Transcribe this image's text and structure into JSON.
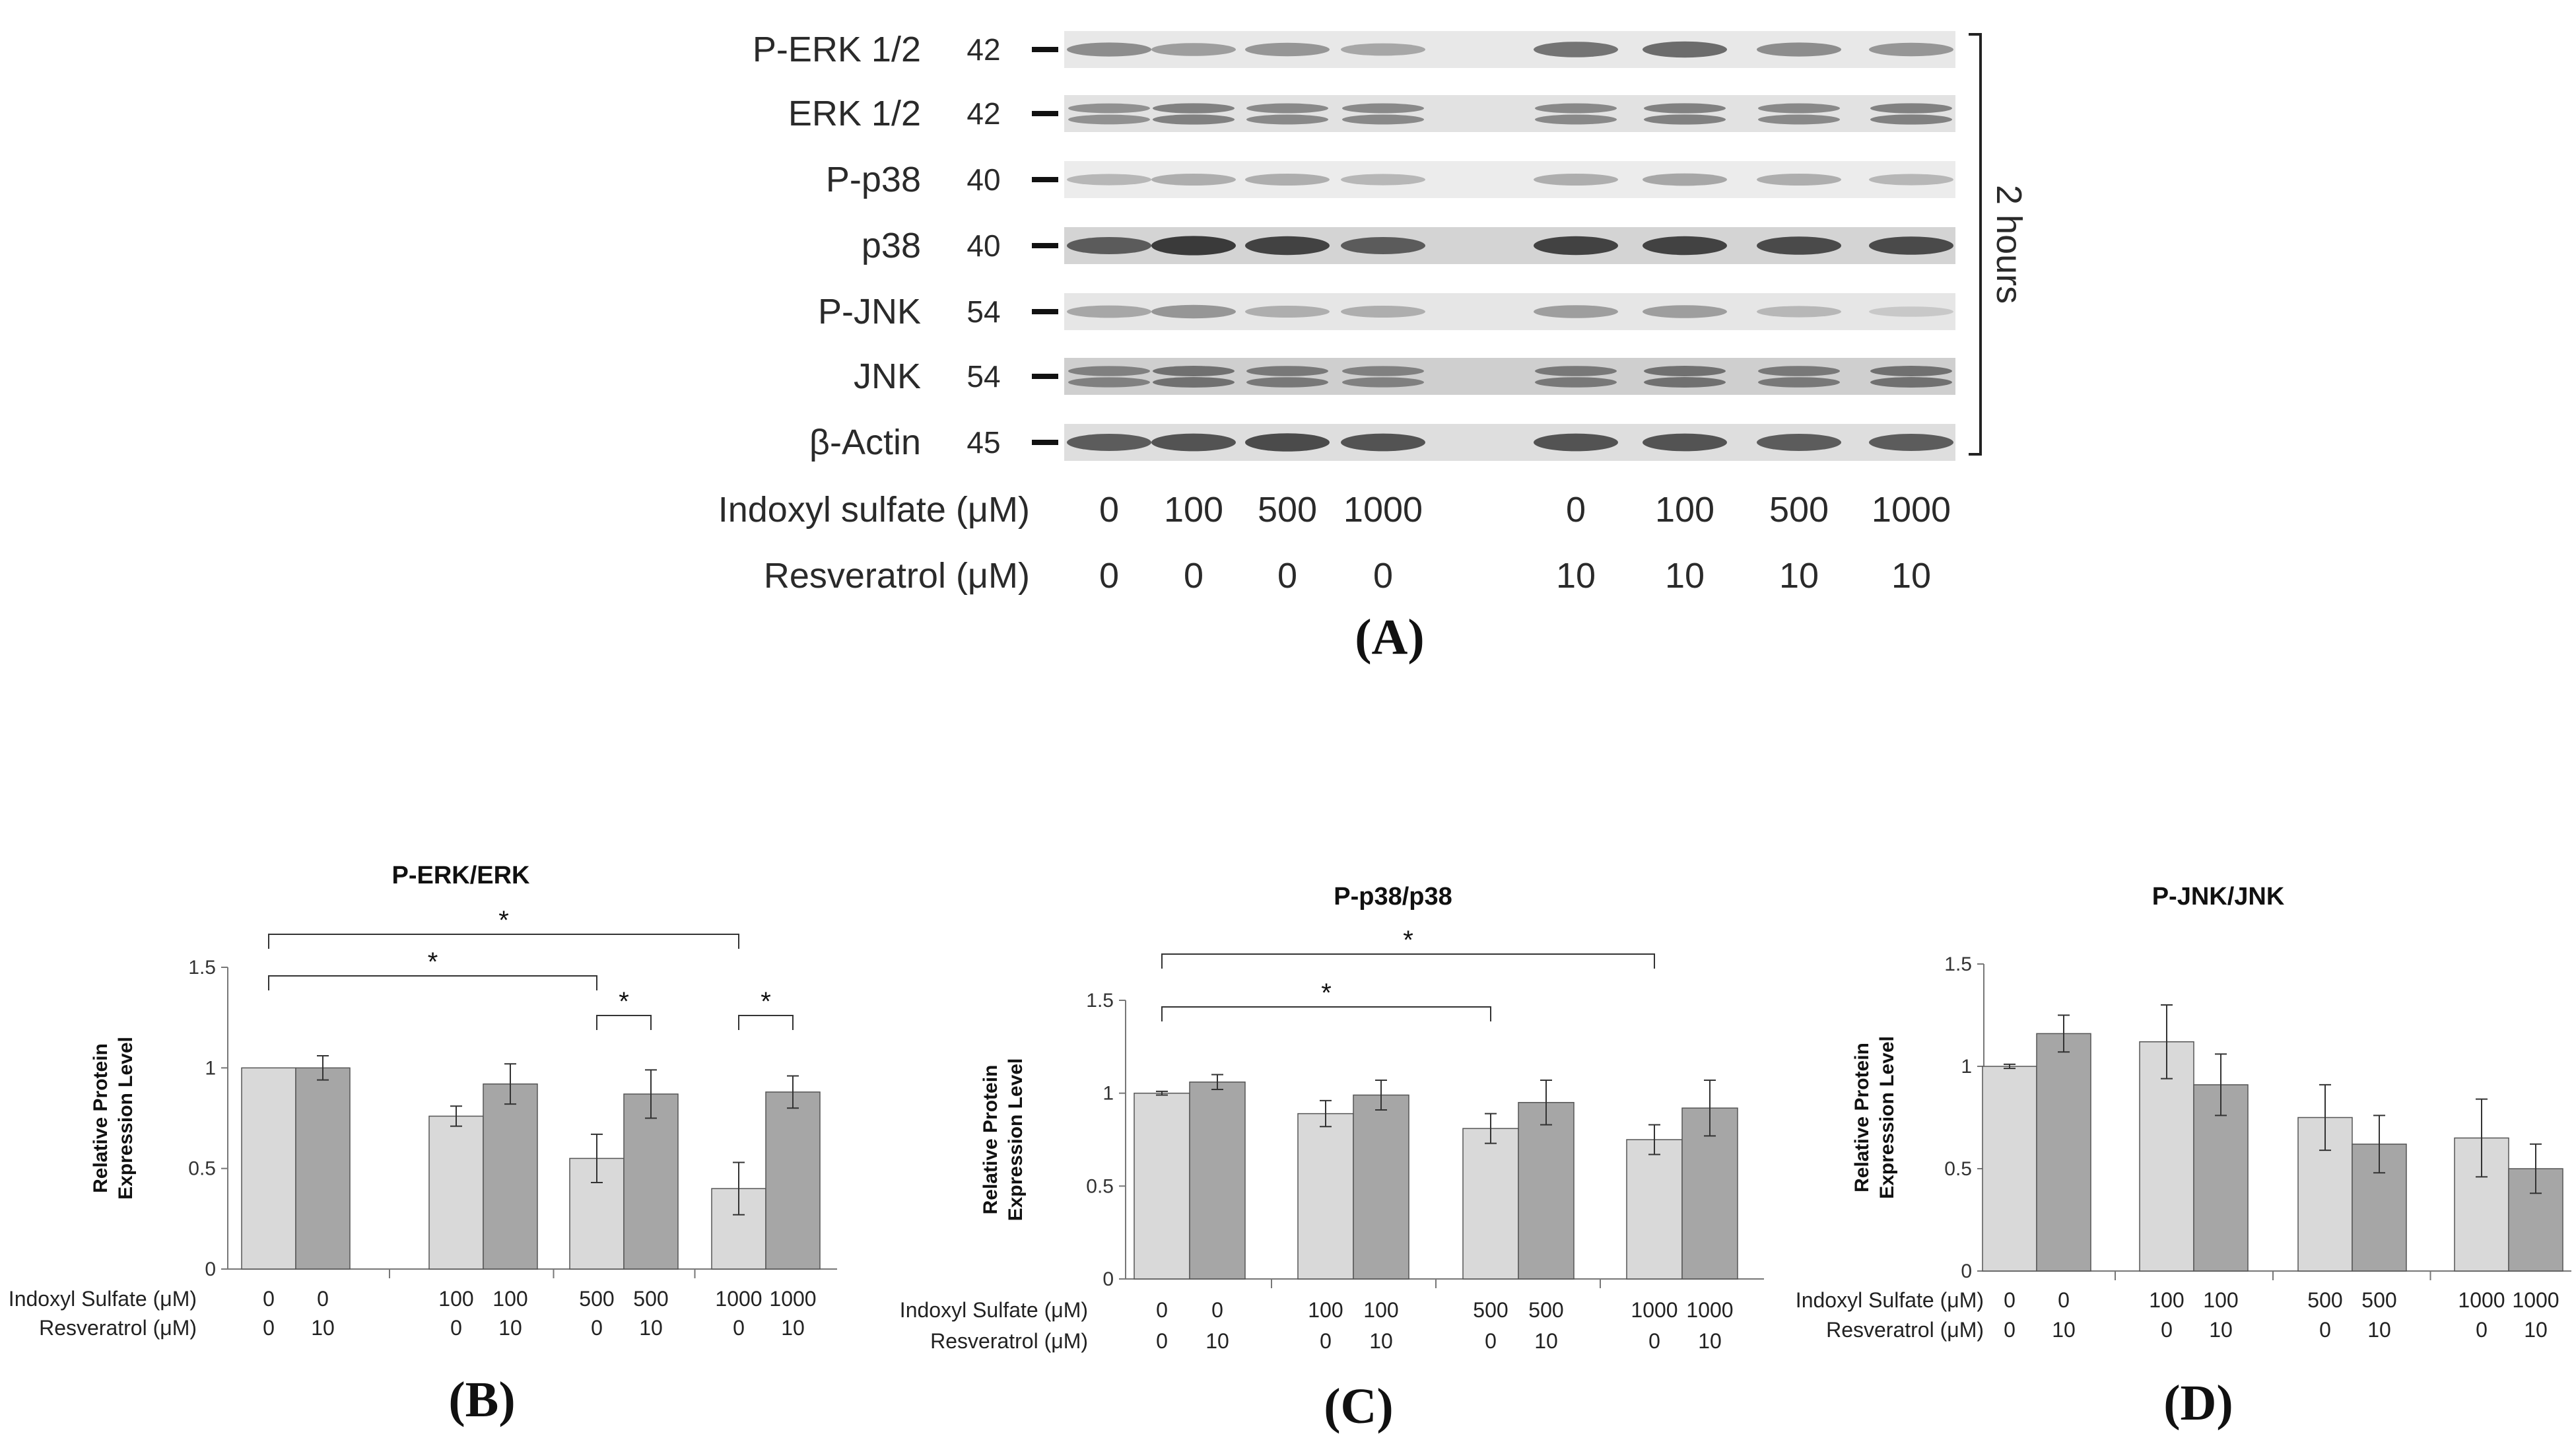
{
  "panel_a": {
    "letter": "(A)",
    "rows": [
      {
        "label": "P-ERK 1/2",
        "mw": "42"
      },
      {
        "label": "ERK  1/2",
        "mw": "42"
      },
      {
        "label": "P-p38",
        "mw": "40"
      },
      {
        "label": "p38",
        "mw": "40"
      },
      {
        "label": "P-JNK",
        "mw": "54"
      },
      {
        "label": "JNK",
        "mw": "54"
      },
      {
        "label": "β-Actin",
        "mw": "45"
      }
    ],
    "time_label": "2 hours",
    "indoxyl_label": "Indoxyl  sulfate  (μM)",
    "resveratrol_label": "Resveratrol (μM)",
    "indoxyl_values": [
      "0",
      "100",
      "500",
      "1000",
      "0",
      "100",
      "500",
      "1000"
    ],
    "resveratrol_values": [
      "0",
      "0",
      "0",
      "0",
      "10",
      "10",
      "10",
      "10"
    ]
  },
  "chart_data": [
    {
      "type": "bar",
      "panel": "(B)",
      "title": "P-ERK/ERK",
      "ylabel": "Relative Protein Expression Level",
      "ylabel_lines": [
        "Relative Protein",
        "Expression Level"
      ],
      "ylim": [
        0,
        1.5
      ],
      "yticks": [
        "0",
        "0.5",
        "1",
        "1.5"
      ],
      "row1_label": "Indoxyl Sulfate (μM)",
      "row2_label": "Resveratrol  (μM)",
      "groups": [
        {
          "is": [
            "0",
            "0"
          ],
          "rsv": [
            "0",
            "10"
          ],
          "values": [
            1.0,
            1.0
          ],
          "errors": [
            0.0,
            0.06
          ]
        },
        {
          "is": [
            "100",
            "100"
          ],
          "rsv": [
            "0",
            "10"
          ],
          "values": [
            0.76,
            0.92
          ],
          "errors": [
            0.05,
            0.1
          ]
        },
        {
          "is": [
            "500",
            "500"
          ],
          "rsv": [
            "0",
            "10"
          ],
          "values": [
            0.55,
            0.87
          ],
          "errors": [
            0.12,
            0.12
          ]
        },
        {
          "is": [
            "1000",
            "1000"
          ],
          "rsv": [
            "0",
            "10"
          ],
          "values": [
            0.4,
            0.88
          ],
          "errors": [
            0.13,
            0.08
          ]
        }
      ],
      "colors": [
        "#d9d9d9",
        "#a6a6a6"
      ],
      "significance": [
        {
          "from": [
            0,
            0
          ],
          "to": [
            3,
            0
          ],
          "label": "*"
        },
        {
          "from": [
            0,
            0
          ],
          "to": [
            2,
            0
          ],
          "label": "*"
        },
        {
          "from": [
            2,
            0
          ],
          "to": [
            2,
            1
          ],
          "label": "*"
        },
        {
          "from": [
            3,
            0
          ],
          "to": [
            3,
            1
          ],
          "label": "*"
        }
      ]
    },
    {
      "type": "bar",
      "panel": "(C)",
      "title": "P-p38/p38",
      "ylabel": "Relative Protein Expression Level",
      "ylabel_lines": [
        "Relative Protein",
        "Expression Level"
      ],
      "ylim": [
        0,
        1.5
      ],
      "yticks": [
        "0",
        "0.5",
        "1",
        "1.5"
      ],
      "row1_label": "Indoxyl Sulfate (μM)",
      "row2_label": "Resveratrol  (μM)",
      "groups": [
        {
          "is": [
            "0",
            "0"
          ],
          "rsv": [
            "0",
            "10"
          ],
          "values": [
            1.0,
            1.06
          ],
          "errors": [
            0.01,
            0.04
          ]
        },
        {
          "is": [
            "100",
            "100"
          ],
          "rsv": [
            "0",
            "10"
          ],
          "values": [
            0.89,
            0.99
          ],
          "errors": [
            0.07,
            0.08
          ]
        },
        {
          "is": [
            "500",
            "500"
          ],
          "rsv": [
            "0",
            "10"
          ],
          "values": [
            0.81,
            0.95
          ],
          "errors": [
            0.08,
            0.12
          ]
        },
        {
          "is": [
            "1000",
            "1000"
          ],
          "rsv": [
            "0",
            "10"
          ],
          "values": [
            0.75,
            0.92
          ],
          "errors": [
            0.08,
            0.15
          ]
        }
      ],
      "colors": [
        "#d9d9d9",
        "#a6a6a6"
      ],
      "significance": [
        {
          "from": [
            0,
            0
          ],
          "to": [
            3,
            0
          ],
          "label": "*"
        },
        {
          "from": [
            0,
            0
          ],
          "to": [
            2,
            0
          ],
          "label": "*"
        }
      ]
    },
    {
      "type": "bar",
      "panel": "(D)",
      "title": "P-JNK/JNK",
      "ylabel": "Relative Protein Expression Level",
      "ylabel_lines": [
        "Relative Protein",
        "Expression Level"
      ],
      "ylim": [
        0,
        1.5
      ],
      "yticks": [
        "0",
        "0.5",
        "1",
        "1.5"
      ],
      "row1_label": "Indoxyl Sulfate (μM)",
      "row2_label": "Resveratrol  (μM)",
      "groups": [
        {
          "is": [
            "0",
            "0"
          ],
          "rsv": [
            "0",
            "10"
          ],
          "values": [
            1.0,
            1.16
          ],
          "errors": [
            0.01,
            0.09
          ]
        },
        {
          "is": [
            "100",
            "100"
          ],
          "rsv": [
            "0",
            "10"
          ],
          "values": [
            1.12,
            0.91
          ],
          "errors": [
            0.18,
            0.15
          ]
        },
        {
          "is": [
            "500",
            "500"
          ],
          "rsv": [
            "0",
            "10"
          ],
          "values": [
            0.75,
            0.62
          ],
          "errors": [
            0.16,
            0.14
          ]
        },
        {
          "is": [
            "1000",
            "1000"
          ],
          "rsv": [
            "0",
            "10"
          ],
          "values": [
            0.65,
            0.5
          ],
          "errors": [
            0.19,
            0.12
          ]
        }
      ],
      "colors": [
        "#d9d9d9",
        "#a6a6a6"
      ],
      "significance": []
    }
  ]
}
